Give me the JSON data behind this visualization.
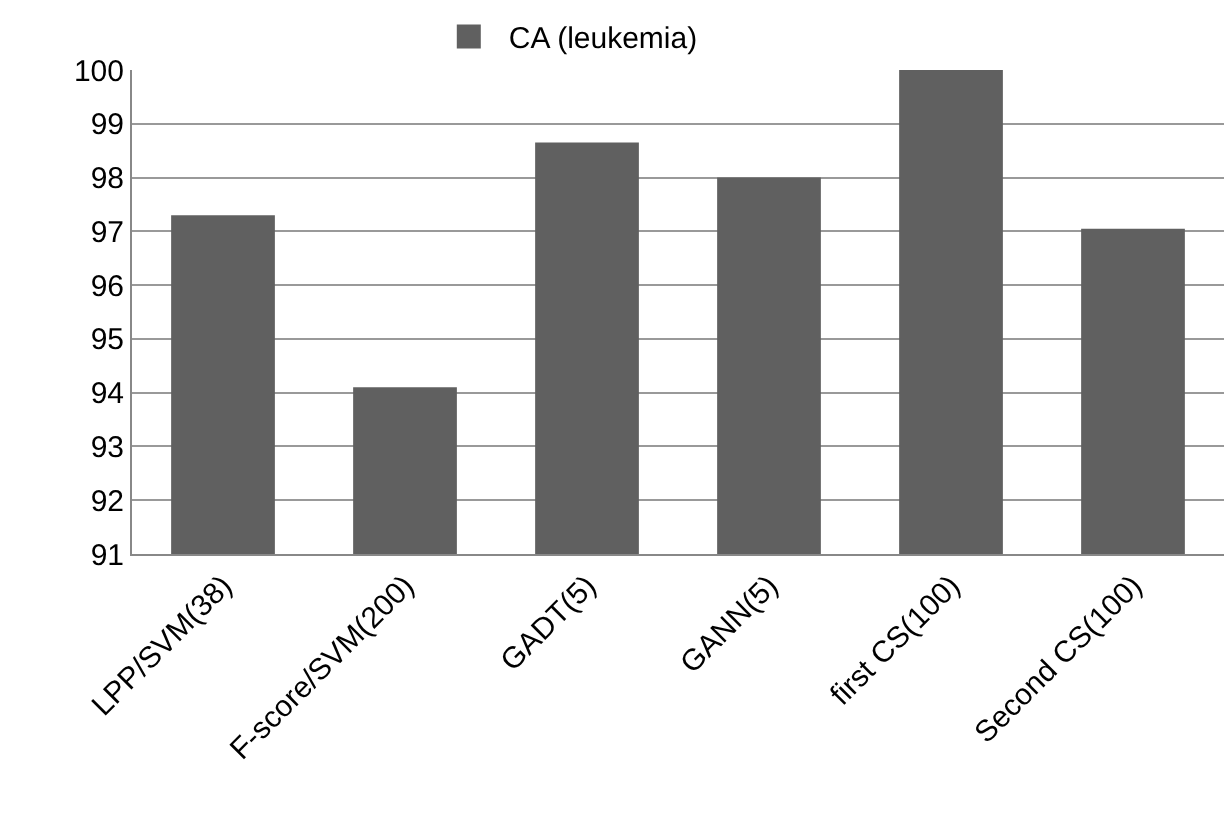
{
  "chart_data": {
    "type": "bar",
    "categories": [
      "LPP/SVM(38)",
      "F-score/SVM(200)",
      "GADT(5)",
      "GANN(5)",
      "first CS(100)",
      "Second CS(100)"
    ],
    "series": [
      {
        "name": "CA (leukemia)",
        "color": "#606060",
        "values": [
          97.3,
          94.1,
          98.65,
          98.0,
          100,
          97.05
        ]
      }
    ],
    "ylim": [
      91,
      100
    ],
    "yticks": [
      91,
      92,
      93,
      94,
      95,
      96,
      97,
      98,
      99,
      100
    ],
    "grid": "y",
    "legend": "top"
  }
}
